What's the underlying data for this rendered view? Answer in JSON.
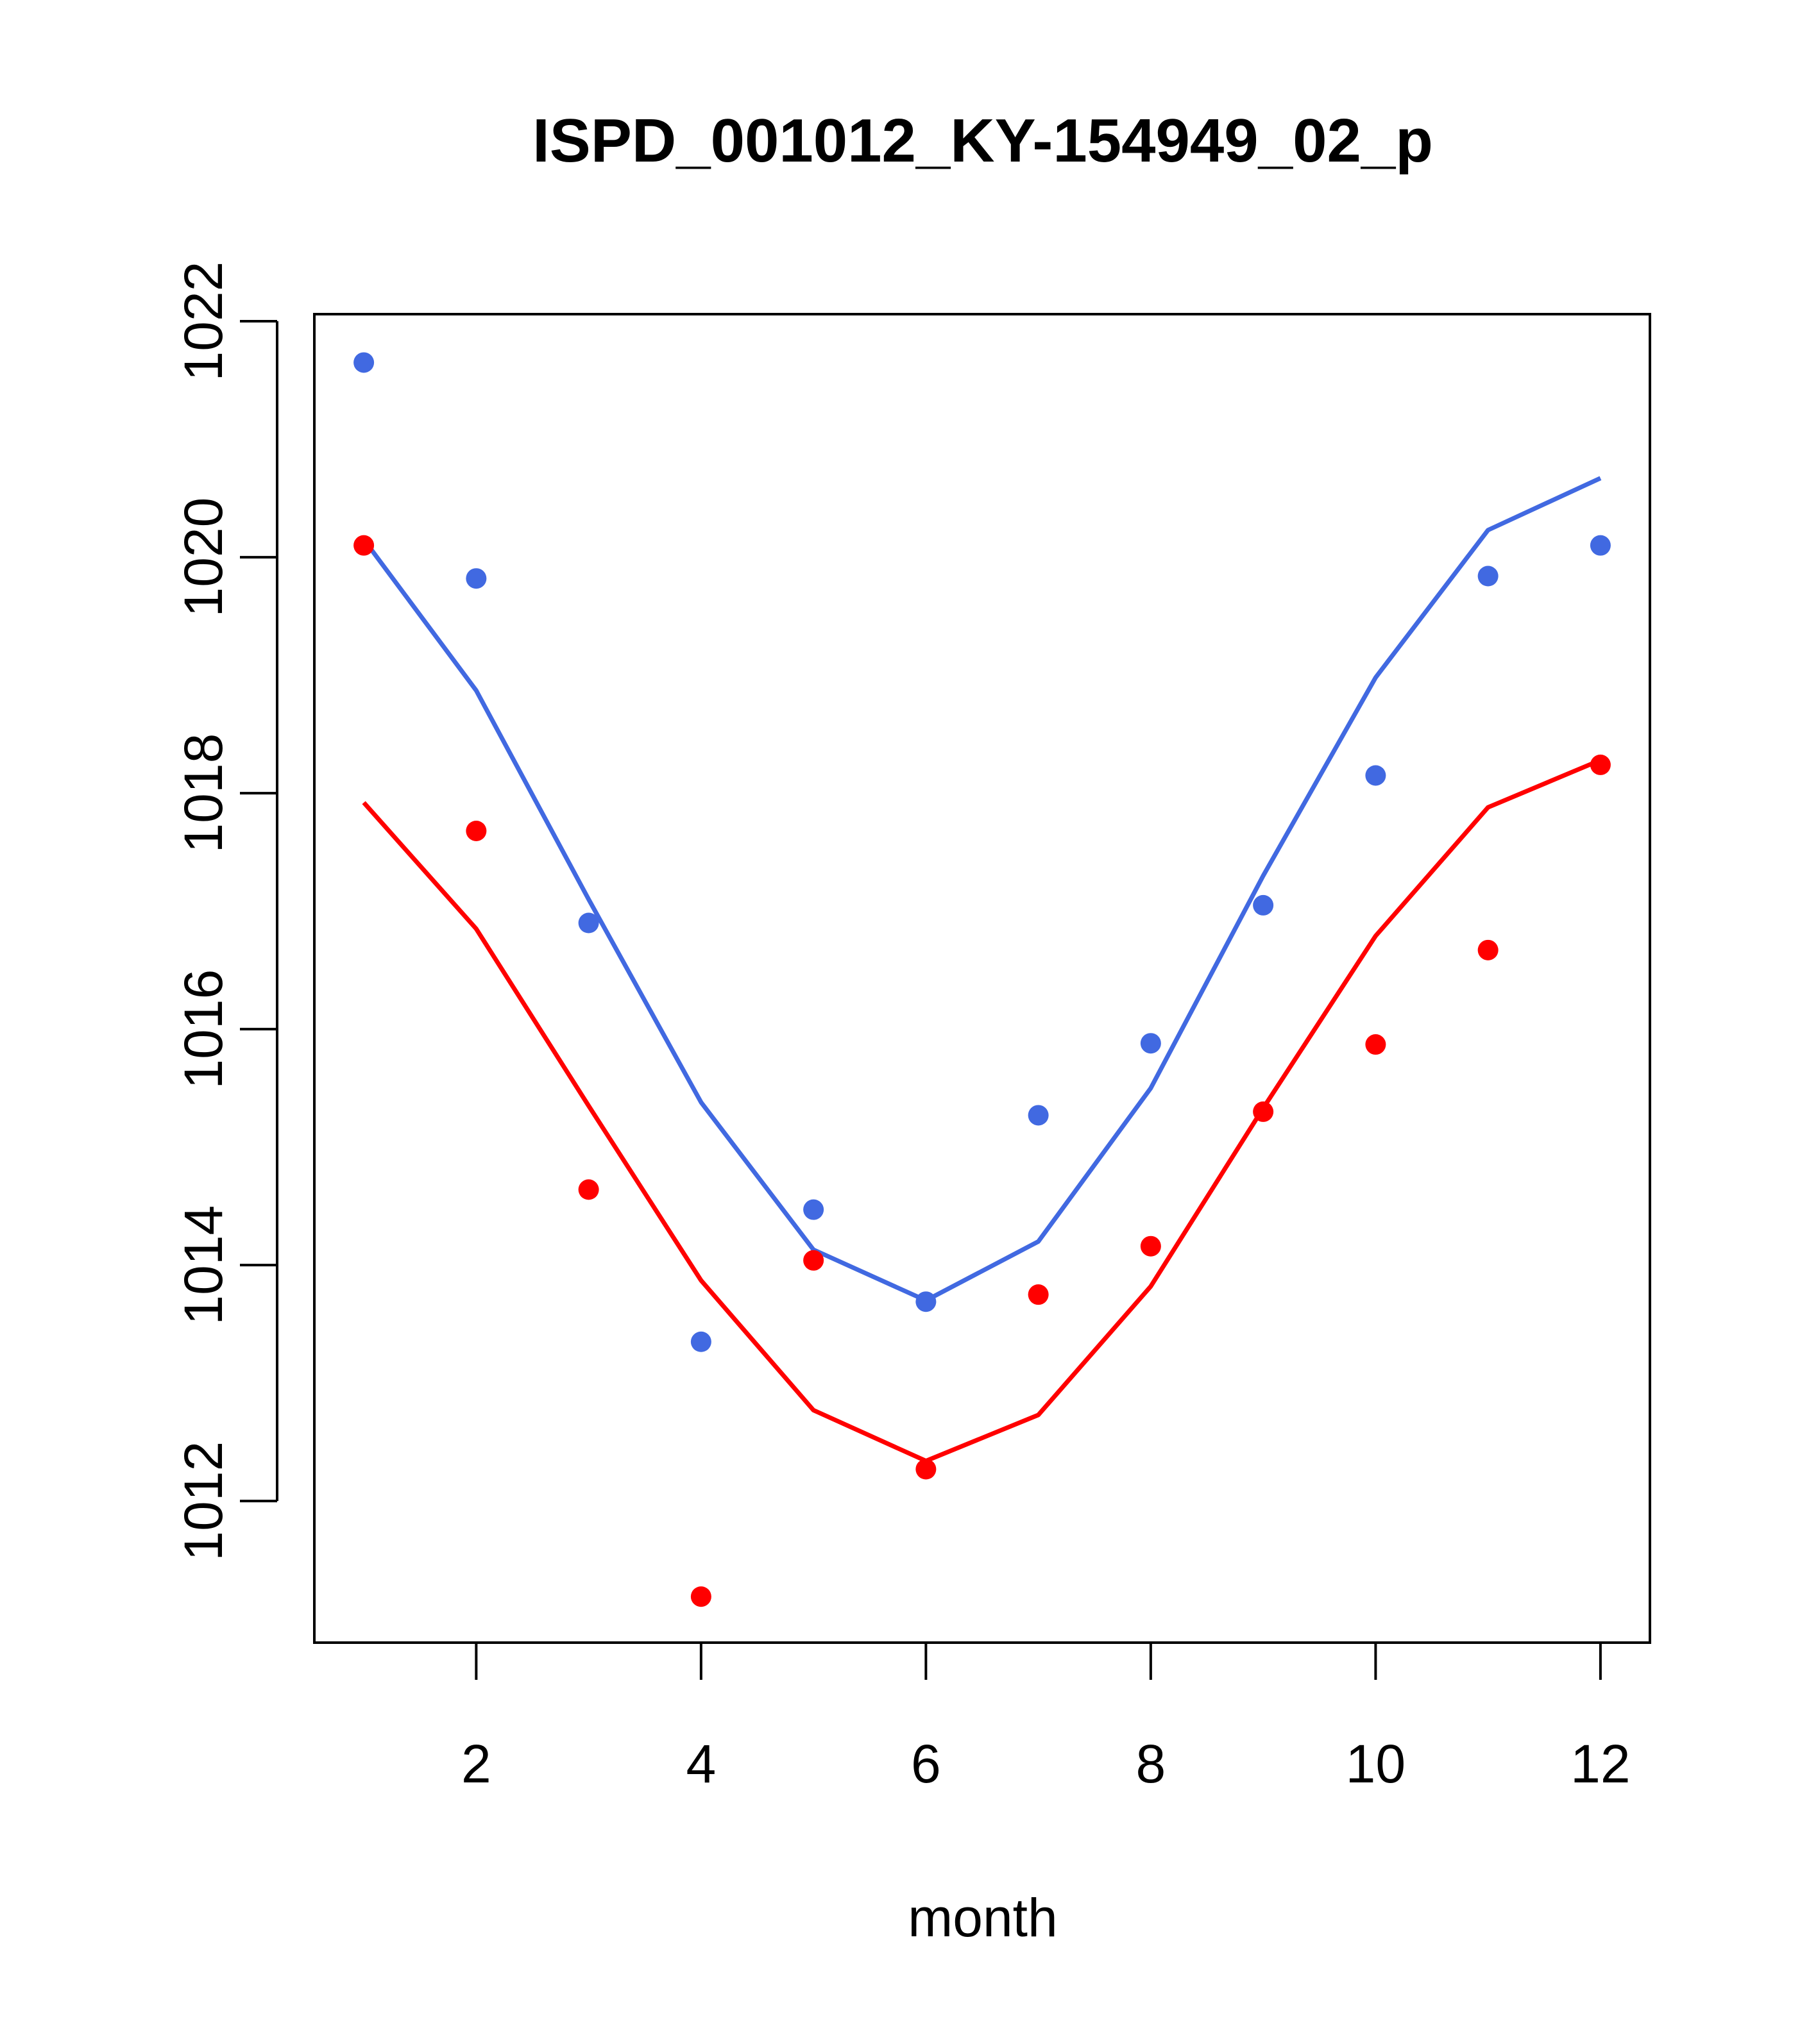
{
  "chart_data": {
    "type": "line",
    "title": "ISPD_001012_KY-154949_02_p",
    "xlabel": "month",
    "ylabel": "",
    "xlim": [
      0.56,
      12.44
    ],
    "ylim": [
      1010.8,
      1022.06
    ],
    "x_ticks": [
      2,
      4,
      6,
      8,
      10,
      12
    ],
    "y_ticks": [
      1012,
      1014,
      1016,
      1018,
      1020,
      1022
    ],
    "grid": false,
    "legend": "none",
    "series": [
      {
        "name": "blue line",
        "kind": "line",
        "color": "#4169E1",
        "x": [
          1,
          2,
          3,
          4,
          5,
          6,
          7,
          8,
          9,
          10,
          11,
          12
        ],
        "values": [
          1020.15,
          1018.87,
          1017.1,
          1015.38,
          1014.13,
          1013.7,
          1014.2,
          1015.5,
          1017.3,
          1018.98,
          1020.23,
          1020.67
        ]
      },
      {
        "name": "blue points",
        "kind": "scatter",
        "color": "#4169E1",
        "x": [
          1,
          2,
          3,
          4,
          5,
          6,
          7,
          8,
          9,
          10,
          11,
          12
        ],
        "values": [
          1021.65,
          1019.82,
          1016.9,
          1013.35,
          1014.47,
          1013.69,
          1015.27,
          1015.88,
          1017.05,
          1018.15,
          1019.84,
          1020.1
        ]
      },
      {
        "name": "red line",
        "kind": "line",
        "color": "#FF0000",
        "x": [
          1,
          2,
          3,
          4,
          5,
          6,
          7,
          8,
          9,
          10,
          11,
          12
        ],
        "values": [
          1017.92,
          1016.85,
          1015.35,
          1013.87,
          1012.77,
          1012.34,
          1012.73,
          1013.82,
          1015.33,
          1016.79,
          1017.88,
          1018.28
        ]
      },
      {
        "name": "red points",
        "kind": "scatter",
        "color": "#FF0000",
        "x": [
          1,
          2,
          3,
          4,
          5,
          6,
          7,
          8,
          9,
          10,
          11,
          12
        ],
        "values": [
          1020.1,
          1017.68,
          1014.64,
          1011.19,
          1014.04,
          1012.27,
          1013.75,
          1014.16,
          1015.3,
          1015.87,
          1016.67,
          1018.24
        ]
      }
    ]
  }
}
